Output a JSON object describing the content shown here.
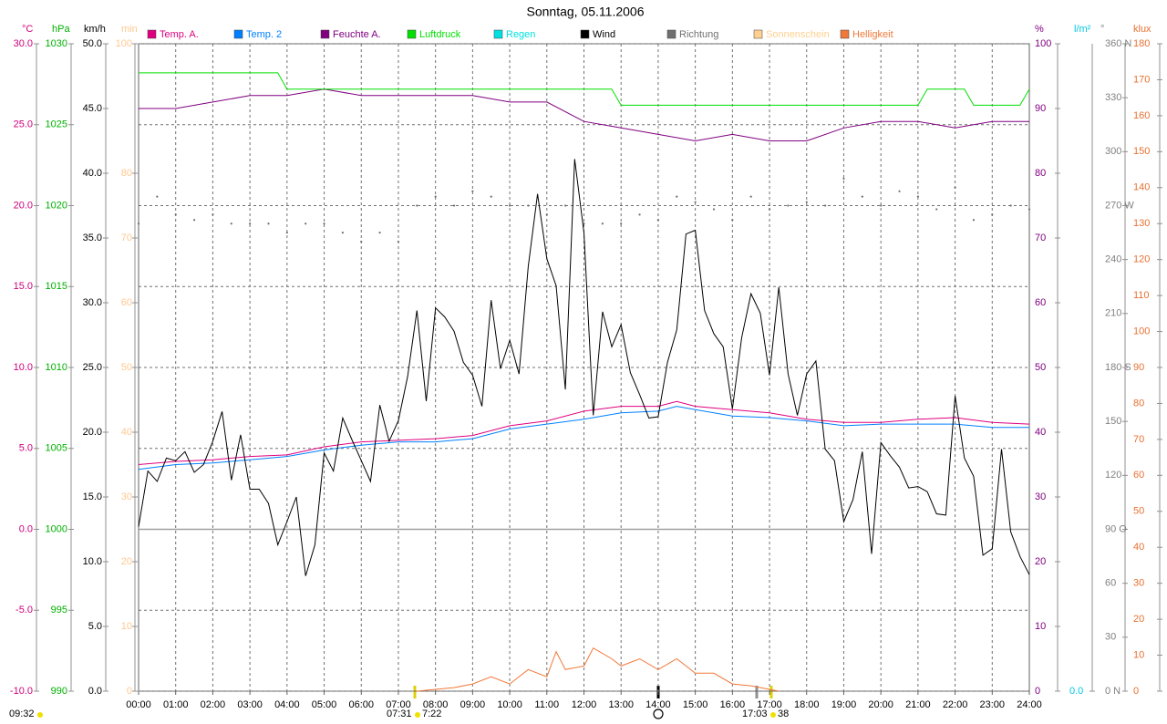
{
  "chart_data": {
    "type": "line",
    "title": "Sonntag, 05.11.2006",
    "xlim": [
      0,
      24
    ],
    "xticks": [
      {
        "value": 0,
        "label": "00:00"
      },
      {
        "value": 1,
        "label": "01:00"
      },
      {
        "value": 2,
        "label": "02:00"
      },
      {
        "value": 3,
        "label": "03:00"
      },
      {
        "value": 4,
        "label": "04:00"
      },
      {
        "value": 5,
        "label": "05:00"
      },
      {
        "value": 6,
        "label": "06:00"
      },
      {
        "value": 7,
        "label": "07:00"
      },
      {
        "value": 8,
        "label": "08:00"
      },
      {
        "value": 9,
        "label": "09:00"
      },
      {
        "value": 10,
        "label": "10:00"
      },
      {
        "value": 11,
        "label": "11:00"
      },
      {
        "value": 12,
        "label": "12:00"
      },
      {
        "value": 13,
        "label": "13:00"
      },
      {
        "value": 14,
        "label": "14:00"
      },
      {
        "value": 15,
        "label": "15:00"
      },
      {
        "value": 16,
        "label": "16:00"
      },
      {
        "value": 17,
        "label": "17:00"
      },
      {
        "value": 18,
        "label": "18:00"
      },
      {
        "value": 19,
        "label": "19:00"
      },
      {
        "value": 20,
        "label": "20:00"
      },
      {
        "value": 21,
        "label": "21:00"
      },
      {
        "value": 22,
        "label": "22:00"
      },
      {
        "value": 23,
        "label": "23:00"
      },
      {
        "value": 24,
        "label": "24:00"
      }
    ],
    "grid": true,
    "axes": [
      {
        "unit": "°C",
        "color": "#d0007a",
        "side": "left",
        "ylim": [
          -10,
          30
        ],
        "yticks": [
          {
            "value": -10,
            "label": "-10.0"
          },
          {
            "value": -5,
            "label": "-5.0"
          },
          {
            "value": 0,
            "label": "0.0"
          },
          {
            "value": 5,
            "label": "5.0"
          },
          {
            "value": 10,
            "label": "10.0"
          },
          {
            "value": 15,
            "label": "15.0"
          },
          {
            "value": 20,
            "label": "20.0"
          },
          {
            "value": 25,
            "label": "25.0"
          },
          {
            "value": 30,
            "label": "30.0"
          }
        ]
      },
      {
        "unit": "hPa",
        "color": "#00b000",
        "side": "left",
        "ylim": [
          990,
          1030
        ],
        "yticks": [
          990,
          995,
          1000,
          1005,
          1010,
          1015,
          1020,
          1025,
          1030
        ]
      },
      {
        "unit": "km/h",
        "color": "#000000",
        "side": "left",
        "ylim": [
          0,
          50
        ],
        "yticks": [
          {
            "value": 0,
            "label": "0.0"
          },
          {
            "value": 5,
            "label": "5.0"
          },
          {
            "value": 10,
            "label": "10.0"
          },
          {
            "value": 15,
            "label": "15.0"
          },
          {
            "value": 20,
            "label": "20.0"
          },
          {
            "value": 25,
            "label": "25.0"
          },
          {
            "value": 30,
            "label": "30.0"
          },
          {
            "value": 35,
            "label": "35.0"
          },
          {
            "value": 40,
            "label": "40.0"
          },
          {
            "value": 45,
            "label": "45.0"
          },
          {
            "value": 50,
            "label": "50.0"
          }
        ]
      },
      {
        "unit": "min",
        "color": "#ffc890",
        "side": "left",
        "ylim": [
          0,
          100
        ],
        "yticks": [
          0,
          10,
          20,
          30,
          40,
          50,
          60,
          70,
          80,
          100
        ]
      },
      {
        "unit": "%",
        "color": "#800080",
        "side": "right",
        "ylim": [
          0,
          100
        ],
        "yticks": [
          0,
          10,
          20,
          30,
          40,
          50,
          60,
          70,
          80,
          90,
          100
        ]
      },
      {
        "unit": "l/m²",
        "color": "#00c8e0",
        "side": "right",
        "ylim": [
          0,
          1
        ],
        "yticks": [
          {
            "value": 0,
            "label": "0.0"
          }
        ]
      },
      {
        "unit": "°",
        "color": "#808080",
        "side": "right",
        "ylim": [
          0,
          360
        ],
        "yticks": [
          {
            "value": 0,
            "label": "0 N"
          },
          30,
          60,
          {
            "value": 90,
            "label": "90 O"
          },
          120,
          150,
          {
            "value": 180,
            "label": "180 S"
          },
          210,
          240,
          {
            "value": 270,
            "label": "270 W"
          },
          300,
          330,
          {
            "value": 360,
            "label": "360 N"
          }
        ]
      },
      {
        "unit": "klux",
        "color": "#e87030",
        "side": "right",
        "ylim": [
          0,
          180
        ],
        "yticks": [
          0,
          10,
          20,
          30,
          40,
          50,
          60,
          70,
          80,
          90,
          100,
          110,
          120,
          130,
          140,
          150,
          160,
          170,
          180
        ]
      }
    ],
    "series": [
      {
        "name": "Temp. A.",
        "color": "#e0007f",
        "axis": 0,
        "x": [
          0,
          1,
          2,
          3,
          4,
          5,
          6,
          7,
          8,
          9,
          10,
          11,
          12,
          13,
          14,
          14.5,
          15,
          16,
          17,
          18,
          19,
          20,
          21,
          22,
          23,
          24
        ],
        "values": [
          4.0,
          4.2,
          4.3,
          4.5,
          4.6,
          5.1,
          5.4,
          5.5,
          5.6,
          5.8,
          6.4,
          6.7,
          7.3,
          7.6,
          7.6,
          7.9,
          7.6,
          7.4,
          7.2,
          6.8,
          6.6,
          6.6,
          6.8,
          6.9,
          6.6,
          6.5
        ]
      },
      {
        "name": "Temp. 2",
        "color": "#0080ff",
        "axis": 0,
        "x": [
          0,
          1,
          2,
          3,
          4,
          5,
          6,
          7,
          8,
          9,
          10,
          11,
          12,
          13,
          14,
          14.5,
          15,
          16,
          17,
          18,
          19,
          20,
          21,
          22,
          23,
          24
        ],
        "values": [
          3.7,
          4.0,
          4.1,
          4.3,
          4.5,
          4.9,
          5.2,
          5.4,
          5.4,
          5.6,
          6.2,
          6.5,
          6.8,
          7.2,
          7.3,
          7.6,
          7.4,
          7.0,
          6.9,
          6.7,
          6.4,
          6.5,
          6.5,
          6.5,
          6.3,
          6.3
        ]
      },
      {
        "name": "Feuchte A.",
        "color": "#800080",
        "axis": 4,
        "x": [
          0,
          1,
          2,
          3,
          4,
          5,
          6,
          7,
          8,
          9,
          10,
          11,
          12,
          13,
          14,
          15,
          16,
          17,
          18,
          19,
          20,
          21,
          22,
          23,
          24
        ],
        "values": [
          90,
          90,
          91,
          92,
          92,
          93,
          92,
          92,
          92,
          92,
          91,
          91,
          88,
          87,
          86,
          85,
          86,
          85,
          85,
          87,
          88,
          88,
          87,
          88,
          88
        ]
      },
      {
        "name": "Luftdruck",
        "color": "#00e000",
        "axis": 1,
        "x": [
          0,
          3.75,
          4,
          12.75,
          13,
          21,
          21.25,
          22.25,
          22.5,
          23.75,
          24
        ],
        "values": [
          1028.2,
          1028.2,
          1027.2,
          1027.2,
          1026.2,
          1026.2,
          1027.2,
          1027.2,
          1026.2,
          1026.2,
          1027.2
        ]
      },
      {
        "name": "Regen",
        "color": "#00e0e0",
        "axis": 5,
        "x": [],
        "values": []
      },
      {
        "name": "Wind",
        "color": "#000000",
        "axis": 2,
        "x": [
          0,
          0.25,
          0.5,
          0.75,
          1,
          1.25,
          1.5,
          1.75,
          2,
          2.25,
          2.5,
          2.75,
          3,
          3.25,
          3.5,
          3.75,
          4,
          4.25,
          4.5,
          4.75,
          5,
          5.25,
          5.5,
          5.75,
          6,
          6.25,
          6.5,
          6.75,
          7,
          7.25,
          7.5,
          7.75,
          8,
          8.25,
          8.5,
          8.75,
          9,
          9.25,
          9.5,
          9.75,
          10,
          10.25,
          10.5,
          10.75,
          11,
          11.25,
          11.5,
          11.75,
          12,
          12.25,
          12.5,
          12.75,
          13,
          13.25,
          13.5,
          13.75,
          14,
          14.25,
          14.5,
          14.75,
          15,
          15.25,
          15.5,
          15.75,
          16,
          16.25,
          16.5,
          16.75,
          17,
          17.25,
          17.5,
          17.75,
          18,
          18.25,
          18.5,
          18.75,
          19,
          19.25,
          19.5,
          19.75,
          20,
          20.25,
          20.5,
          20.75,
          21,
          21.25,
          21.5,
          21.75,
          22,
          22.25,
          22.5,
          22.75,
          23,
          23.25,
          23.5,
          23.75,
          24
        ],
        "values": [
          12.7,
          17.0,
          16.2,
          18.0,
          17.8,
          18.5,
          16.9,
          17.5,
          19.3,
          21.6,
          16.3,
          19.8,
          15.6,
          15.6,
          14.5,
          11.3,
          13.1,
          15.0,
          8.9,
          11.3,
          18.4,
          17.0,
          21.1,
          19.4,
          17.8,
          16.2,
          22.1,
          19.3,
          20.9,
          24.3,
          29.4,
          22.4,
          29.6,
          28.9,
          27.8,
          25.4,
          24.4,
          22.0,
          30.2,
          24.9,
          27.1,
          24.5,
          32.8,
          38.4,
          33.4,
          31.3,
          23.3,
          41.1,
          35.4,
          21.3,
          29.3,
          26.6,
          28.3,
          24.6,
          22.9,
          21.1,
          21.2,
          25.4,
          27.9,
          35.3,
          35.6,
          29.4,
          27.6,
          26.6,
          21.8,
          27.3,
          30.7,
          29.2,
          24.4,
          31.2,
          24.5,
          21.3,
          24.5,
          25.5,
          18.7,
          17.8,
          13.1,
          14.8,
          18.5,
          10.6,
          19.2,
          18.2,
          17.3,
          15.7,
          15.8,
          15.4,
          13.7,
          13.6,
          22.8,
          18.0,
          16.6,
          10.5,
          11.0,
          18.7,
          12.3,
          10.4,
          9.0
        ]
      },
      {
        "name": "Richtung",
        "color": "#707070",
        "axis": 6,
        "style": "dots",
        "x": [
          0,
          0.5,
          1,
          1.5,
          2,
          2.5,
          3,
          3.5,
          4,
          4.5,
          5,
          5.5,
          6,
          6.5,
          7,
          7.5,
          8,
          8.5,
          9,
          9.5,
          10,
          10.5,
          11,
          11.5,
          12,
          12.5,
          13,
          13.5,
          14,
          14.5,
          15,
          15.5,
          16,
          16.5,
          17,
          17.5,
          18,
          18.5,
          19,
          19.5,
          20,
          20.5,
          21,
          21.5,
          22,
          22.5,
          23,
          23.5,
          24
        ],
        "values": [
          260,
          275,
          265,
          262,
          265,
          260,
          260,
          260,
          255,
          260,
          260,
          255,
          250,
          255,
          250,
          270,
          275,
          270,
          278,
          275,
          270,
          270,
          265,
          270,
          260,
          260,
          260,
          265,
          262,
          275,
          272,
          268,
          262,
          275,
          268,
          270,
          272,
          270,
          285,
          275,
          270,
          278,
          275,
          268,
          280,
          262,
          265,
          270,
          268
        ]
      },
      {
        "name": "Sonnenschein",
        "color": "#ffd090",
        "axis": 3,
        "x": [],
        "values": []
      },
      {
        "name": "Helligkeit",
        "color": "#f07838",
        "axis": 7,
        "x": [
          7.5,
          8,
          8.5,
          9,
          9.5,
          10,
          10.5,
          11,
          11.25,
          11.5,
          12,
          12.25,
          12.75,
          13,
          13.5,
          14,
          14.5,
          15,
          15.5,
          16,
          16.5,
          17,
          17.25
        ],
        "values": [
          0,
          0.5,
          1,
          2,
          4,
          2,
          6,
          4,
          11,
          6,
          7,
          12,
          9,
          7,
          9,
          6,
          9,
          5,
          5,
          2,
          1.5,
          0.5,
          0
        ]
      }
    ],
    "annotations": [
      "09:32",
      "07:31",
      "7:22",
      "17:03",
      "38"
    ]
  }
}
